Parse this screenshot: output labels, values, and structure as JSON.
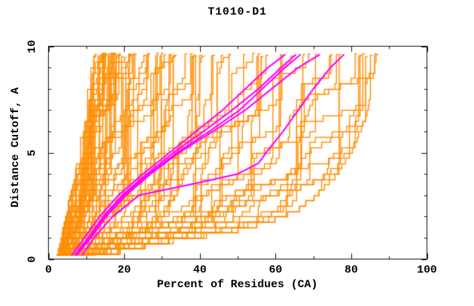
{
  "title": "T1010-D1",
  "colors": {
    "background": "#ffffff",
    "axis": "#000000",
    "model_orange": "#FF8C00",
    "highlight_magenta": "#FF00FF"
  },
  "chart_data": {
    "type": "line",
    "title": "T1010-D1",
    "xlabel": "Percent of Residues (CA)",
    "ylabel": "Distance Cutoff, A",
    "xlim": [
      0,
      100
    ],
    "ylim": [
      0,
      10
    ],
    "grid": false,
    "legend": "none",
    "x_major_ticks": [
      0,
      20,
      40,
      60,
      80,
      100
    ],
    "x_major_tick_labels": [
      "0",
      "20",
      "40",
      "60",
      "80",
      "100"
    ],
    "x_minor_ticks": [
      10,
      30,
      50,
      70,
      90
    ],
    "y_major_ticks": [
      0,
      5,
      10
    ],
    "y_major_tick_labels": [
      "0",
      "5",
      "10"
    ],
    "y_minor_ticks": [
      1,
      2,
      3,
      4,
      6,
      7,
      8,
      9
    ],
    "curve_style": "steps of 0.25 A cutoff levels, percent within cutoff on x",
    "background_models": {
      "description": "dense family of server model curves; envelopes read from plot, individual curves generated between them",
      "color": "#FF8C00",
      "count": 95,
      "seed": 7,
      "skew": 2.6,
      "level_step": 0.25,
      "start_cutoff": 0.2,
      "cap_range": [
        9.5,
        9.68
      ],
      "x_quantum": 0.35,
      "left_envelope": [
        [
          0.2,
          3
        ],
        [
          1,
          4
        ],
        [
          2,
          5.3
        ],
        [
          3,
          6.5
        ],
        [
          4,
          7.7
        ],
        [
          5,
          8.5
        ],
        [
          6,
          9.3
        ],
        [
          7,
          10
        ],
        [
          8,
          10.6
        ],
        [
          9,
          11.2
        ],
        [
          9.68,
          11.6
        ]
      ],
      "right_envelope": [
        [
          0.2,
          11
        ],
        [
          1,
          33
        ],
        [
          1.5,
          50
        ],
        [
          2,
          60
        ],
        [
          2.5,
          66
        ],
        [
          3,
          70
        ],
        [
          4,
          75.5
        ],
        [
          5,
          79.5
        ],
        [
          6,
          82
        ],
        [
          7,
          84
        ],
        [
          8,
          85.2
        ],
        [
          9,
          86
        ],
        [
          9.68,
          86.5
        ]
      ]
    },
    "highlighted_models": {
      "description": "magenta highlighted model curves, approx control points [cutoff_A, percent]",
      "color": "#FF00FF",
      "line_width": 2.2,
      "curves": [
        {
          "points": [
            [
              0.2,
              6.2
            ],
            [
              1,
              9.5
            ],
            [
              2,
              13.5
            ],
            [
              3,
              18.5
            ],
            [
              4,
              25
            ],
            [
              5,
              32
            ],
            [
              6,
              39
            ],
            [
              7,
              46
            ],
            [
              8,
              52
            ],
            [
              9,
              58
            ],
            [
              9.6,
              62.5
            ]
          ]
        },
        {
          "points": [
            [
              0.2,
              7.0
            ],
            [
              1,
              10.5
            ],
            [
              2,
              14.5
            ],
            [
              3,
              19.5
            ],
            [
              4,
              26
            ],
            [
              5,
              33
            ],
            [
              6,
              41
            ],
            [
              7,
              48.5
            ],
            [
              8,
              55.5
            ],
            [
              9,
              61.5
            ],
            [
              9.6,
              65.3
            ]
          ]
        },
        {
          "points": [
            [
              0.2,
              7.4
            ],
            [
              1,
              10.9
            ],
            [
              2,
              14.9
            ],
            [
              3,
              20
            ],
            [
              4,
              26.5
            ],
            [
              5,
              34
            ],
            [
              6,
              42.5
            ],
            [
              7,
              50.5
            ],
            [
              8,
              56.5
            ],
            [
              9,
              62.5
            ],
            [
              9.6,
              66.5
            ]
          ]
        },
        {
          "points": [
            [
              0.2,
              7.6
            ],
            [
              1,
              11.2
            ],
            [
              2,
              15.3
            ],
            [
              3,
              20.5
            ],
            [
              4,
              27
            ],
            [
              5,
              34.5
            ],
            [
              6,
              43.5
            ],
            [
              7,
              52
            ],
            [
              8,
              59
            ],
            [
              9,
              66
            ],
            [
              9.6,
              71.6
            ]
          ]
        },
        {
          "points": [
            [
              0.2,
              9.0
            ],
            [
              1,
              12
            ],
            [
              2,
              17
            ],
            [
              3,
              24
            ],
            [
              3.6,
              40
            ],
            [
              4,
              50
            ],
            [
              4.5,
              55.5
            ],
            [
              5,
              57.5
            ],
            [
              6,
              62
            ],
            [
              7,
              66
            ],
            [
              8,
              70
            ],
            [
              9,
              74.5
            ],
            [
              9.6,
              78
            ]
          ]
        }
      ]
    }
  }
}
